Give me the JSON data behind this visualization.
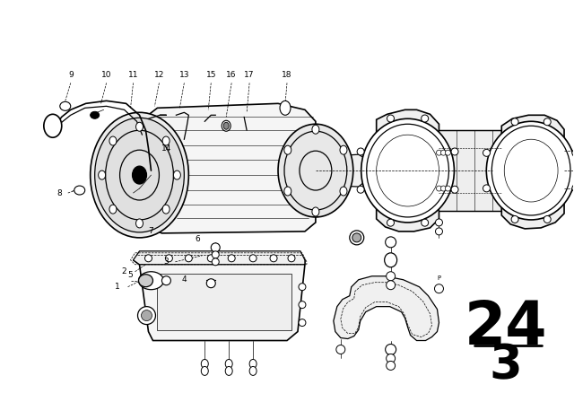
{
  "bg_color": "#ffffff",
  "line_color": "#000000",
  "figure_width": 6.4,
  "figure_height": 4.48,
  "dpi": 100,
  "title_number": "24",
  "title_sub": "3",
  "title_fontsize": 48,
  "title_sub_fontsize": 38,
  "label_fontsize": 6.5,
  "lw_thin": 0.5,
  "lw_med": 0.9,
  "lw_thick": 1.2
}
